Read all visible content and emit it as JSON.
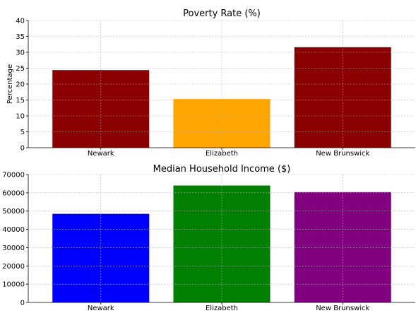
{
  "chart_data": [
    {
      "type": "bar",
      "title": "Poverty Rate (%)",
      "xlabel": "",
      "ylabel": "Percentage",
      "categories": [
        "Newark",
        "Elizabeth",
        "New Brunswick"
      ],
      "values": [
        24.4,
        15.3,
        31.6
      ],
      "colors": [
        "#8b0000",
        "#ffa500",
        "#8b0000"
      ],
      "ylim": [
        0,
        40
      ],
      "yticks": [
        0,
        5,
        10,
        15,
        20,
        25,
        30,
        35,
        40
      ],
      "grid": true
    },
    {
      "type": "bar",
      "title": "Median Household Income ($)",
      "xlabel": "",
      "ylabel": "",
      "categories": [
        "Newark",
        "Elizabeth",
        "New Brunswick"
      ],
      "values": [
        48500,
        64000,
        60400
      ],
      "colors": [
        "#0000ff",
        "#008000",
        "#800080"
      ],
      "ylim": [
        0,
        70000
      ],
      "yticks": [
        0,
        10000,
        20000,
        30000,
        40000,
        50000,
        60000,
        70000
      ],
      "grid": true
    }
  ]
}
